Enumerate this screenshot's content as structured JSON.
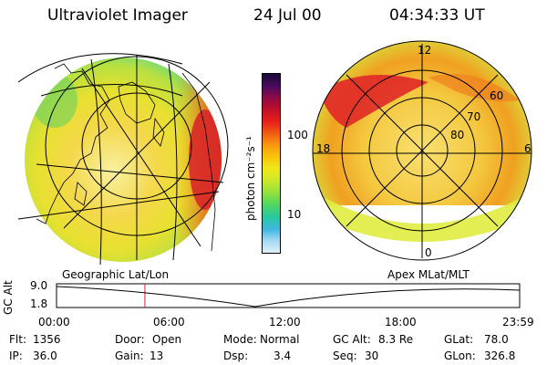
{
  "header": {
    "instrument": "Ultraviolet Imager",
    "date": "24 Jul 00",
    "time": "04:34:33 UT"
  },
  "left_panel": {
    "label": "Geographic Lat/Lon"
  },
  "right_panel": {
    "label": "Apex MLat/MLT",
    "mlt_labels": {
      "top": "12",
      "left": "18",
      "right": "6",
      "bottom": "0"
    },
    "mlat_labels": [
      "60",
      "70",
      "80"
    ]
  },
  "colorbar": {
    "unit": "photon cm⁻²s⁻¹",
    "ticks": [
      "100",
      "10"
    ],
    "colors": [
      "#1a0a3a",
      "#4a0a5e",
      "#8a0a4a",
      "#c01028",
      "#e8201a",
      "#f05a14",
      "#f89a10",
      "#f8c80a",
      "#f0e81a",
      "#c8e82a",
      "#8ee040",
      "#50d860",
      "#28c8a0",
      "#40b8e0",
      "#a0d8f0",
      "#e0f0f8"
    ]
  },
  "altitude_plot": {
    "ylabel": "GC Alt",
    "ymax_label": "9.0",
    "ymin_label": "1.8",
    "x_ticks": [
      "00:00",
      "06:00",
      "12:00",
      "18:00",
      "23:59"
    ],
    "current_marker_hours": 4.58
  },
  "info": {
    "flt_label": "Flt:",
    "flt_value": "1356",
    "ip_label": "IP:",
    "ip_value": "36.0",
    "door_label": "Door:",
    "door_value": "Open",
    "gain_label": "Gain:",
    "gain_value": "13",
    "mode_label": "Mode:",
    "mode_value": "Normal",
    "dsp_label": "Dsp:",
    "dsp_value": "3.4",
    "gcalt_label": "GC Alt:",
    "gcalt_value": "8.3 Re",
    "seq_label": "Seq:",
    "seq_value": "30",
    "glat_label": "GLat:",
    "glat_value": "78.0",
    "glon_label": "GLon:",
    "glon_value": "326.8"
  }
}
